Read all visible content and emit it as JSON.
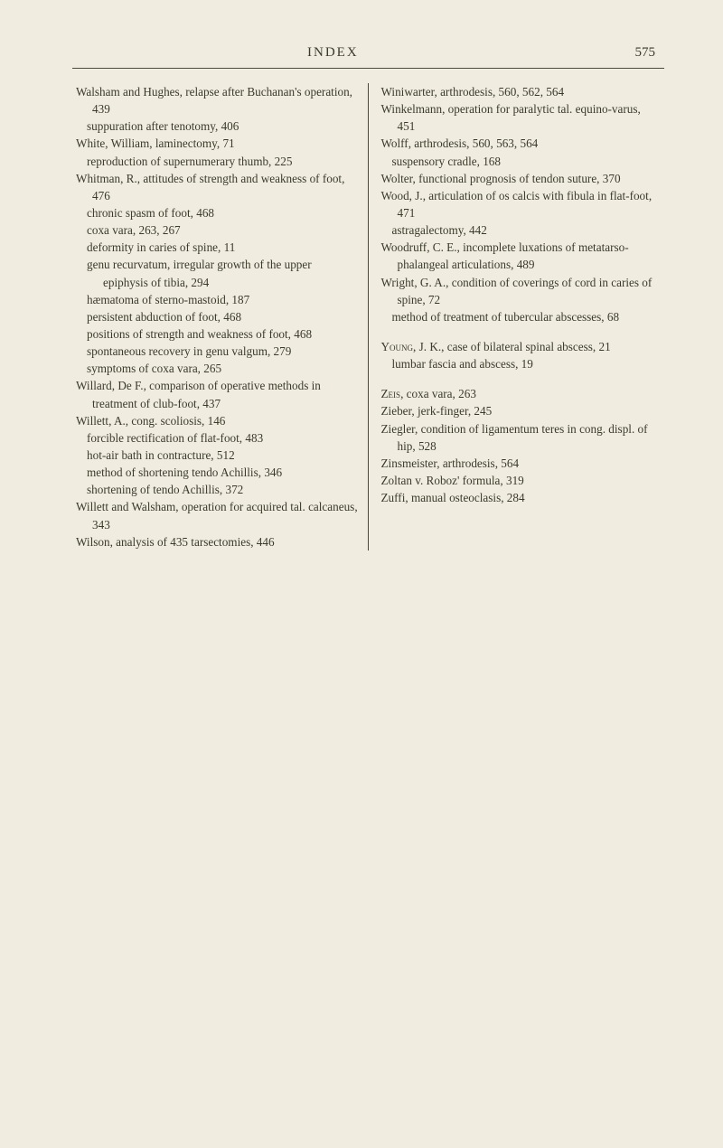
{
  "page": {
    "header_title": "INDEX",
    "page_number": "575",
    "background_color": "#f0ede0",
    "text_color": "#3a3a2a",
    "font_family": "Georgia, serif",
    "body_fontsize": 13.2,
    "header_fontsize": 15
  },
  "left_column": [
    {
      "type": "entry",
      "text": "Walsham and Hughes, relapse after Buchanan's operation, 439"
    },
    {
      "type": "sub",
      "text": "suppuration after tenotomy, 406"
    },
    {
      "type": "entry",
      "text": "White, William, laminectomy, 71"
    },
    {
      "type": "sub",
      "text": "reproduction of supernumerary thumb, 225"
    },
    {
      "type": "entry",
      "text": "Whitman, R., attitudes of strength and weakness of foot, 476"
    },
    {
      "type": "sub",
      "text": "chronic spasm of foot, 468"
    },
    {
      "type": "sub",
      "text": "coxa vara, 263, 267"
    },
    {
      "type": "sub",
      "text": "deformity in caries of spine, 11"
    },
    {
      "type": "sub",
      "text": "genu recurvatum, irregular growth of the upper epiphysis of tibia, 294"
    },
    {
      "type": "sub",
      "text": "hæmatoma of sterno-mastoid, 187"
    },
    {
      "type": "sub",
      "text": "persistent abduction of foot, 468"
    },
    {
      "type": "sub",
      "text": "positions of strength and weakness of foot, 468"
    },
    {
      "type": "sub",
      "text": "spontaneous recovery in genu valgum, 279"
    },
    {
      "type": "sub",
      "text": "symptoms of coxa vara, 265"
    },
    {
      "type": "entry",
      "text": "Willard, De F., comparison of operative methods in treatment of club-foot, 437"
    },
    {
      "type": "entry",
      "text": "Willett, A., cong. scoliosis, 146"
    },
    {
      "type": "sub",
      "text": "forcible rectification of flat-foot, 483"
    },
    {
      "type": "sub",
      "text": "hot-air bath in contracture, 512"
    },
    {
      "type": "sub",
      "text": "method of shortening tendo Achillis, 346"
    },
    {
      "type": "sub",
      "text": "shortening of tendo Achillis, 372"
    },
    {
      "type": "entry",
      "text": "Willett and Walsham, operation for acquired tal. calcaneus, 343"
    },
    {
      "type": "entry",
      "text": "Wilson, analysis of 435 tarsectomies, 446"
    }
  ],
  "right_column": [
    {
      "type": "entry",
      "text": "Winiwarter, arthrodesis, 560, 562, 564"
    },
    {
      "type": "entry",
      "text": "Winkelmann, operation for paralytic tal. equino-varus, 451"
    },
    {
      "type": "entry",
      "text": "Wolff, arthrodesis, 560, 563, 564"
    },
    {
      "type": "sub",
      "text": "suspensory cradle, 168"
    },
    {
      "type": "entry",
      "text": "Wolter, functional prognosis of tendon suture, 370"
    },
    {
      "type": "entry",
      "text": "Wood, J., articulation of os calcis with fibula in flat-foot, 471"
    },
    {
      "type": "sub",
      "text": "astragalectomy, 442"
    },
    {
      "type": "entry",
      "text": "Woodruff, C. E., incomplete luxations of metatarso-phalangeal articulations, 489"
    },
    {
      "type": "entry",
      "text": "Wright, G. A., condition of coverings of cord in caries of spine, 72"
    },
    {
      "type": "sub",
      "text": "method of treatment of tubercular abscesses, 68"
    },
    {
      "type": "gap"
    },
    {
      "type": "entry",
      "text": "Young, J. K., case of bilateral spinal abscess, 21",
      "caps": "Young"
    },
    {
      "type": "sub",
      "text": "lumbar fascia and abscess, 19"
    },
    {
      "type": "gap"
    },
    {
      "type": "entry",
      "text": "Zeis, coxa vara, 263",
      "caps": "Zeis"
    },
    {
      "type": "entry",
      "text": "Zieber, jerk-finger, 245"
    },
    {
      "type": "entry",
      "text": "Ziegler, condition of ligamentum teres in cong. displ. of hip, 528"
    },
    {
      "type": "entry",
      "text": "Zinsmeister, arthrodesis, 564"
    },
    {
      "type": "entry",
      "text": "Zoltan v. Roboz' formula, 319"
    },
    {
      "type": "entry",
      "text": "Zuffi, manual osteoclasis, 284"
    }
  ]
}
